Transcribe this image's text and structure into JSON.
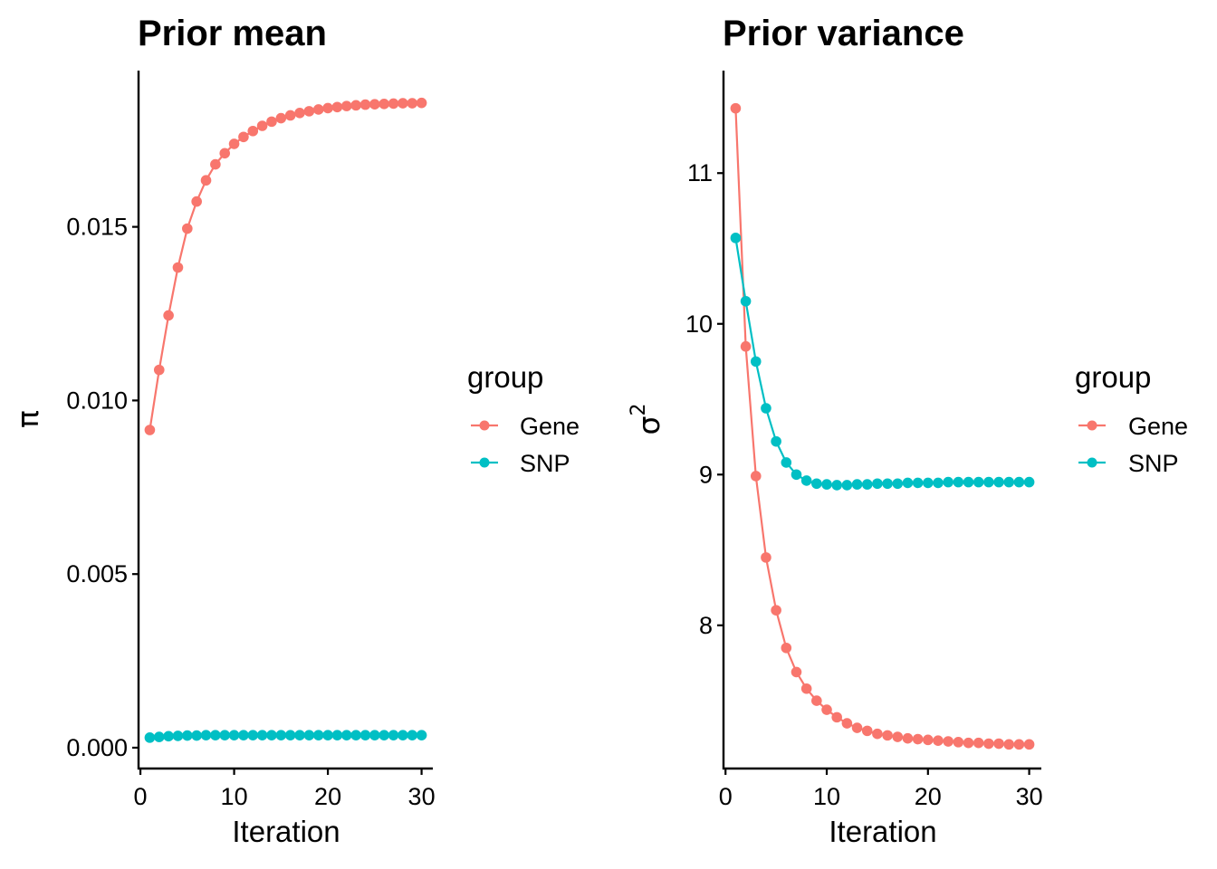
{
  "colors": {
    "Gene": "#F8766D",
    "SNP": "#00BFC4",
    "axis": "#000000"
  },
  "chart_data": [
    {
      "type": "line",
      "title": "Prior mean",
      "xlabel": "Iteration",
      "ylabel_symbol": "π",
      "ylabel_superscript": "",
      "xlim": [
        -0.2,
        31.2
      ],
      "ylim": [
        -0.0006,
        0.0195
      ],
      "xticks": [
        0,
        10,
        20,
        30
      ],
      "xtick_labels": [
        "0",
        "10",
        "20",
        "30"
      ],
      "yticks": [
        0.0,
        0.005,
        0.01,
        0.015
      ],
      "ytick_labels": [
        "0.000",
        "0.005",
        "0.010",
        "0.015"
      ],
      "x": [
        1,
        2,
        3,
        4,
        5,
        6,
        7,
        8,
        9,
        10,
        11,
        12,
        13,
        14,
        15,
        16,
        17,
        18,
        19,
        20,
        21,
        22,
        23,
        24,
        25,
        26,
        27,
        28,
        29,
        30
      ],
      "series": [
        {
          "name": "Gene",
          "values": [
            0.00915,
            0.01088,
            0.01245,
            0.01383,
            0.01495,
            0.01573,
            0.01634,
            0.0168,
            0.01712,
            0.01739,
            0.01759,
            0.01776,
            0.01791,
            0.01803,
            0.01813,
            0.01821,
            0.01828,
            0.01833,
            0.01838,
            0.01842,
            0.01845,
            0.01848,
            0.0185,
            0.01852,
            0.01853,
            0.01854,
            0.01855,
            0.01856,
            0.01856,
            0.01857
          ]
        },
        {
          "name": "SNP",
          "values": [
            0.00029,
            0.00031,
            0.00033,
            0.00034,
            0.00035,
            0.00035,
            0.00036,
            0.00036,
            0.00036,
            0.00036,
            0.00036,
            0.00036,
            0.00036,
            0.00036,
            0.00036,
            0.00036,
            0.00036,
            0.00036,
            0.00036,
            0.00036,
            0.00036,
            0.00036,
            0.00036,
            0.00036,
            0.00036,
            0.00036,
            0.00036,
            0.00036,
            0.00036,
            0.00036
          ]
        }
      ],
      "legend": {
        "title": "group",
        "entries": [
          "Gene",
          "SNP"
        ],
        "placement": "right"
      }
    },
    {
      "type": "line",
      "title": "Prior variance",
      "xlabel": "Iteration",
      "ylabel_symbol": "σ",
      "ylabel_superscript": "2",
      "xlim": [
        -0.2,
        31.2
      ],
      "ylim": [
        7.05,
        11.68
      ],
      "xticks": [
        0,
        10,
        20,
        30
      ],
      "xtick_labels": [
        "0",
        "10",
        "20",
        "30"
      ],
      "yticks": [
        8,
        9,
        10,
        11
      ],
      "ytick_labels": [
        "8",
        "9",
        "10",
        "11"
      ],
      "x": [
        1,
        2,
        3,
        4,
        5,
        6,
        7,
        8,
        9,
        10,
        11,
        12,
        13,
        14,
        15,
        16,
        17,
        18,
        19,
        20,
        21,
        22,
        23,
        24,
        25,
        26,
        27,
        28,
        29,
        30
      ],
      "series": [
        {
          "name": "Gene",
          "values": [
            11.43,
            9.85,
            8.99,
            8.45,
            8.1,
            7.85,
            7.69,
            7.58,
            7.5,
            7.44,
            7.39,
            7.35,
            7.32,
            7.3,
            7.28,
            7.27,
            7.26,
            7.25,
            7.245,
            7.24,
            7.235,
            7.23,
            7.225,
            7.22,
            7.22,
            7.215,
            7.215,
            7.21,
            7.21,
            7.21
          ]
        },
        {
          "name": "SNP",
          "values": [
            10.57,
            10.15,
            9.75,
            9.44,
            9.22,
            9.08,
            9.0,
            8.96,
            8.94,
            8.935,
            8.93,
            8.93,
            8.935,
            8.935,
            8.94,
            8.94,
            8.94,
            8.945,
            8.945,
            8.945,
            8.945,
            8.95,
            8.95,
            8.95,
            8.95,
            8.95,
            8.95,
            8.95,
            8.95,
            8.95
          ]
        }
      ],
      "legend": {
        "title": "group",
        "entries": [
          "Gene",
          "SNP"
        ],
        "placement": "right"
      }
    }
  ]
}
